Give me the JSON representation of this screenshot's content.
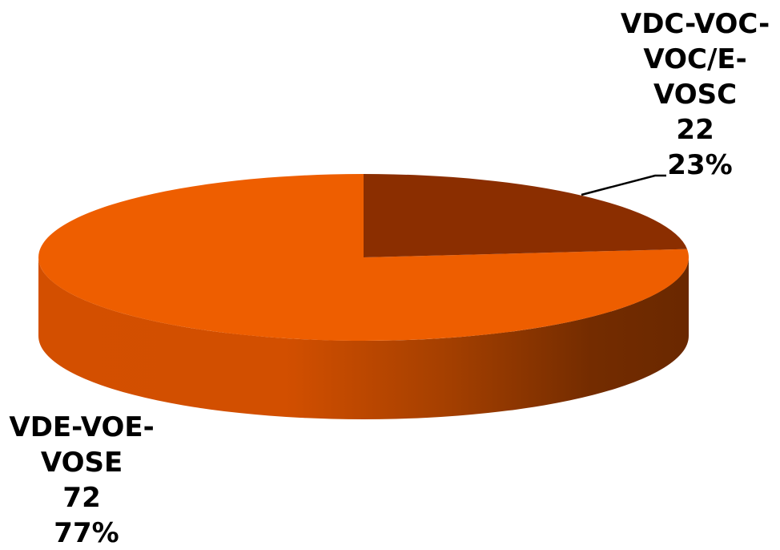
{
  "chart_data": {
    "type": "pie",
    "style": "3d",
    "slices": [
      {
        "label_lines": [
          "VDC-VOC-",
          "VOC/E-",
          "VOSC"
        ],
        "value": 22,
        "percent": "23%",
        "color": "#8B2E00"
      },
      {
        "label_lines": [
          "VDE-VOE-",
          "VOSE"
        ],
        "value": 72,
        "percent": "77%",
        "color": "#EE5E00"
      }
    ],
    "legend": "none"
  }
}
